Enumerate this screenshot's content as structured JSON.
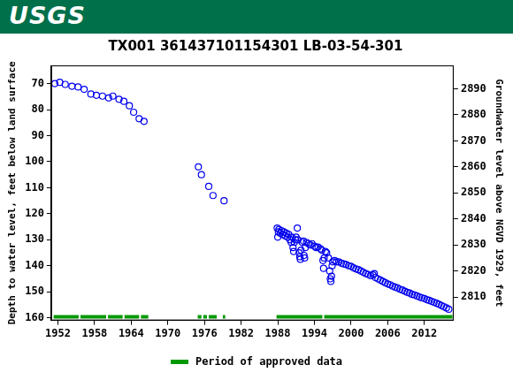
{
  "header": "USGS",
  "chart_data": {
    "type": "scatter",
    "title": "TX001 361437101154301 LB-03-54-301",
    "y_label": "Depth to water level, feet below land surface",
    "y2_label": "Groundwater level above NGVD 1929, feet",
    "color": "#0000ee",
    "marker": "open_circle",
    "grid": false,
    "x": [
      1951.5,
      1952.3,
      1953.2,
      1954.3,
      1955.3,
      1956.3,
      1957.4,
      1958.3,
      1959.3,
      1960.3,
      1961.0,
      1962.0,
      1962.8,
      1963.7,
      1964.4,
      1965.3,
      1966.1,
      1975.0,
      1975.5,
      1976.7,
      1977.4,
      1979.2,
      1987.9,
      1988.0,
      1988.1,
      1988.2,
      1988.4,
      1988.6,
      1988.8,
      1989.0,
      1989.2,
      1989.4,
      1989.6,
      1989.8,
      1990.0,
      1990.2,
      1990.3,
      1990.5,
      1990.6,
      1990.7,
      1990.9,
      1991.0,
      1991.2,
      1991.3,
      1991.5,
      1991.6,
      1991.7,
      1991.8,
      1992.0,
      1992.2,
      1992.3,
      1992.4,
      1992.5,
      1992.7,
      1993.0,
      1993.3,
      1993.6,
      1994.0,
      1994.3,
      1994.6,
      1995.0,
      1995.2,
      1995.4,
      1995.5,
      1995.6,
      1995.8,
      1996.0,
      1996.3,
      1996.5,
      1996.6,
      1996.7,
      1996.8,
      1996.9,
      1997.0,
      1997.3,
      1997.6,
      1998.0,
      1998.4,
      1998.8,
      1999.2,
      1999.6,
      2000.0,
      2000.4,
      2000.8,
      2001.2,
      2001.6,
      2002.0,
      2002.4,
      2002.8,
      2003.2,
      2003.6,
      2003.8,
      2004.0,
      2004.4,
      2004.8,
      2005.2,
      2005.6,
      2006.0,
      2006.4,
      2006.8,
      2007.2,
      2007.6,
      2008.0,
      2008.4,
      2008.8,
      2009.2,
      2009.6,
      2010.0,
      2010.4,
      2010.8,
      2011.2,
      2011.6,
      2012.0,
      2012.4,
      2012.8,
      2013.2,
      2013.6,
      2014.0,
      2014.4,
      2014.8,
      2015.2,
      2015.6,
      2016.0
    ],
    "values": [
      70,
      69.5,
      70.3,
      71,
      71.3,
      72.2,
      74,
      74.5,
      74.8,
      75.5,
      74.8,
      76,
      76.8,
      78.5,
      81,
      83.5,
      84.5,
      102,
      105,
      109.5,
      113,
      115,
      125.5,
      129,
      127,
      126,
      127.5,
      126.5,
      128,
      127,
      128.5,
      127.5,
      129,
      128,
      130,
      131,
      129,
      133,
      134.5,
      131,
      130,
      129,
      125.5,
      130,
      135,
      136.5,
      137.5,
      134,
      131,
      130.5,
      136,
      137,
      133,
      131,
      131.5,
      132,
      131.5,
      132.5,
      133,
      132.8,
      133.5,
      134,
      138,
      141,
      137,
      134.5,
      135,
      137,
      142,
      145,
      146,
      144,
      140,
      138.5,
      138,
      138.5,
      138.5,
      139,
      139.3,
      139.5,
      140,
      140.2,
      140.8,
      141.2,
      141.5,
      142,
      142.5,
      143,
      143.3,
      143.8,
      143.5,
      143,
      144.5,
      145,
      145.5,
      146,
      146.5,
      147,
      147.3,
      147.8,
      148.2,
      148.5,
      149,
      149.3,
      149.8,
      150.2,
      150.5,
      151,
      151.2,
      151.6,
      152,
      152.3,
      152.6,
      153,
      153.3,
      153.7,
      154,
      154.4,
      154.8,
      155.3,
      155.7,
      156.2,
      156.7
    ],
    "xlim": [
      1950.9,
      2016.8
    ],
    "xticks": [
      1952,
      1958,
      1964,
      1970,
      1976,
      1982,
      1988,
      1994,
      2000,
      2006,
      2012
    ],
    "ylim": [
      161,
      63
    ],
    "yticks": [
      70,
      80,
      90,
      100,
      110,
      120,
      130,
      140,
      150,
      160
    ],
    "y2lim": [
      2801,
      2899
    ],
    "y2ticks": [
      2810,
      2820,
      2830,
      2840,
      2850,
      2860,
      2870,
      2880,
      2890
    ],
    "approved_data": {
      "name": "Period of approved data",
      "color": "#009900",
      "periods": [
        [
          1951.3,
          1955.4
        ],
        [
          1955.7,
          1959.9
        ],
        [
          1960.2,
          1962.6
        ],
        [
          1962.9,
          1965.3
        ],
        [
          1965.6,
          1966.8
        ],
        [
          1974.9,
          1975.5
        ],
        [
          1975.8,
          1976.4
        ],
        [
          1976.7,
          1978.0
        ],
        [
          1979.0,
          1979.4
        ],
        [
          1987.8,
          1995.3
        ],
        [
          1995.6,
          2016.6
        ]
      ]
    }
  }
}
